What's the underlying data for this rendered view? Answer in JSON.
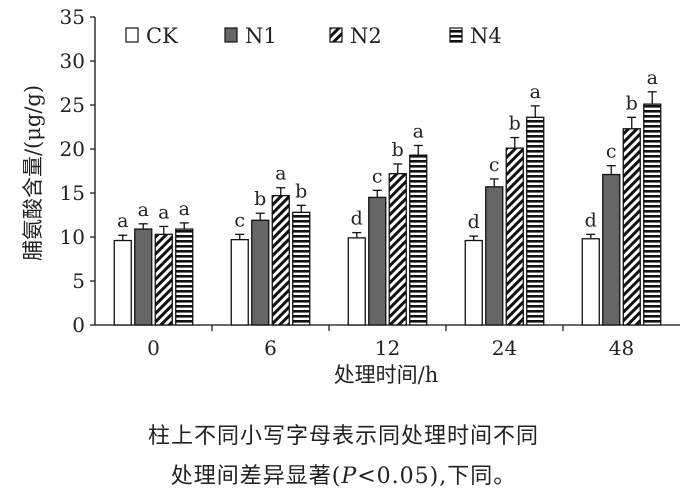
{
  "chart_data": {
    "type": "bar",
    "categories": [
      "0",
      "6",
      "12",
      "24",
      "48"
    ],
    "xlabel": "处理时间/h",
    "ylabel": "脯氨酸含量/(μg/g)",
    "ylim": [
      0,
      35
    ],
    "yticks": [
      "0",
      "5",
      "10",
      "15",
      "20",
      "25",
      "30",
      "35"
    ],
    "legend_position": "top",
    "grid": false,
    "series": [
      {
        "name": "CK",
        "pattern": "white",
        "values": [
          9.6,
          9.7,
          9.9,
          9.6,
          9.8
        ],
        "errors": [
          0.6,
          0.6,
          0.6,
          0.5,
          0.5
        ],
        "letters": [
          "a",
          "c",
          "d",
          "d",
          "d"
        ]
      },
      {
        "name": "N1",
        "pattern": "gray",
        "values": [
          10.9,
          11.9,
          14.5,
          15.7,
          17.1
        ],
        "errors": [
          0.6,
          0.8,
          0.8,
          0.9,
          1.0
        ],
        "letters": [
          "a",
          "b",
          "c",
          "c",
          "c"
        ]
      },
      {
        "name": "N2",
        "pattern": "diagonal",
        "values": [
          10.3,
          14.7,
          17.2,
          20.1,
          22.3
        ],
        "errors": [
          0.9,
          0.9,
          1.1,
          1.2,
          1.3
        ],
        "letters": [
          "a",
          "a",
          "b",
          "b",
          "b"
        ]
      },
      {
        "name": "N4",
        "pattern": "horizontal",
        "values": [
          10.9,
          12.8,
          19.3,
          23.6,
          25.1
        ],
        "errors": [
          0.7,
          0.8,
          1.1,
          1.3,
          1.4
        ],
        "letters": [
          "a",
          "b",
          "a",
          "a",
          "a"
        ]
      }
    ]
  },
  "caption": {
    "line1": "柱上不同小写字母表示同处理时间不同",
    "line2_prefix": "处理间差异显著(",
    "line2_p": "P",
    "line2_suffix": "<0.05),下同。"
  },
  "colors": {
    "bar_edge": "#111111",
    "n1_fill": "#666666",
    "background": "#ffffff"
  }
}
